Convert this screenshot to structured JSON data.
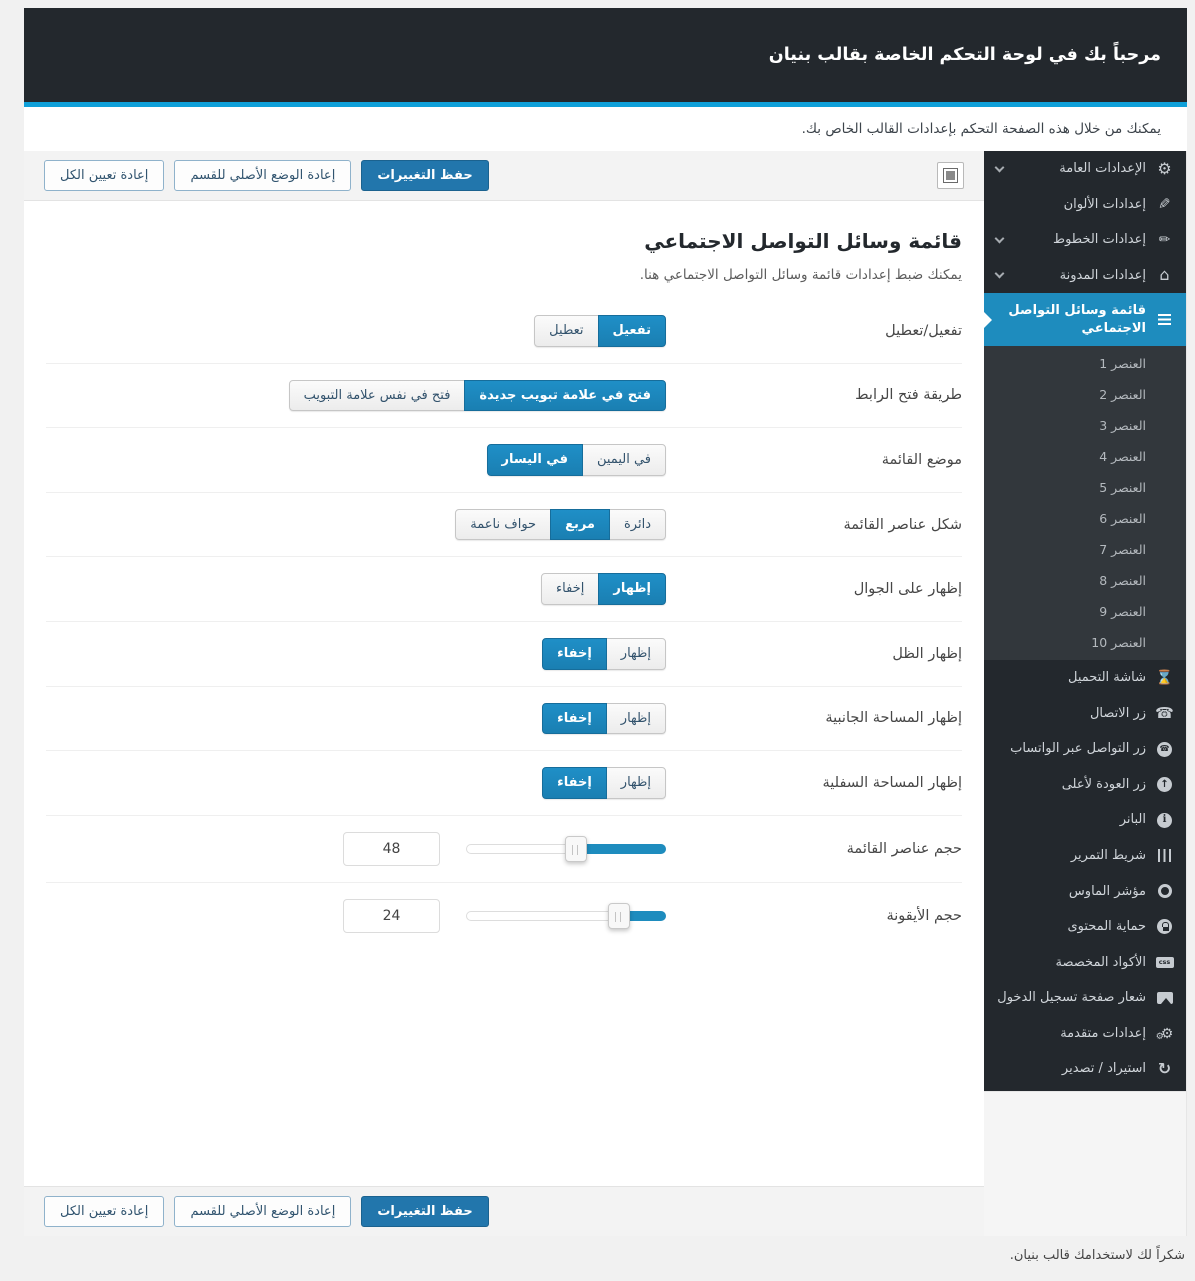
{
  "header": {
    "title": "مرحباً بك في لوحة التحكم الخاصة بقالب بنيان",
    "subtitle": "يمكنك من خلال هذه الصفحة التحكم بإعدادات القالب الخاص بك."
  },
  "toolbar": {
    "save": "حفظ التغييرات",
    "reset_section": "إعادة الوضع الأصلي للقسم",
    "reset_all": "إعادة تعيين الكل",
    "panel_icon": "layout-toggle-icon"
  },
  "sidebar": {
    "css_badge_text": "css",
    "items": [
      {
        "label": "الإعدادات العامة",
        "icon": "gear-icon",
        "expandable": true
      },
      {
        "label": "إعدادات الألوان",
        "icon": "brush-icon",
        "expandable": false
      },
      {
        "label": "إعدادات الخطوط",
        "icon": "pencil-icon",
        "expandable": true
      },
      {
        "label": "إعدادات المدونة",
        "icon": "home-icon",
        "expandable": true
      },
      {
        "label": "قائمة وسائل التواصل الاجتماعي",
        "icon": "list-icon",
        "active": true
      },
      {
        "label": "العنصر 1"
      },
      {
        "label": "العنصر 2"
      },
      {
        "label": "العنصر 3"
      },
      {
        "label": "العنصر 4"
      },
      {
        "label": "العنصر 5"
      },
      {
        "label": "العنصر 6"
      },
      {
        "label": "العنصر 7"
      },
      {
        "label": "العنصر 8"
      },
      {
        "label": "العنصر 9"
      },
      {
        "label": "العنصر 10"
      },
      {
        "label": "شاشة التحميل",
        "icon": "hourglass-icon"
      },
      {
        "label": "زر الاتصال",
        "icon": "phone-icon"
      },
      {
        "label": "زر التواصل عبر الواتساب",
        "icon": "whatsapp-icon"
      },
      {
        "label": "زر العودة لأعلى",
        "icon": "arrow-up-circle-icon"
      },
      {
        "label": "البانر",
        "icon": "info-icon"
      },
      {
        "label": "شريط التمرير",
        "icon": "sliders-icon"
      },
      {
        "label": "مؤشر الماوس",
        "icon": "ring-icon"
      },
      {
        "label": "حماية المحتوى",
        "icon": "lock-icon"
      },
      {
        "label": "الأكواد المخصصة",
        "icon": "css-icon"
      },
      {
        "label": "شعار صفحة تسجيل الدخول",
        "icon": "image-icon"
      },
      {
        "label": "إعدادات متقدمة",
        "icon": "gears-icon"
      },
      {
        "label": "استيراد / تصدير",
        "icon": "sync-icon"
      }
    ]
  },
  "section": {
    "title": "قائمة وسائل التواصل الاجتماعي",
    "description": "يمكنك ضبط إعدادات قائمة وسائل التواصل الاجتماعي هنا.",
    "rows": [
      {
        "label": "تفعيل/تعطيل",
        "options": [
          {
            "label": "تفعيل",
            "active": true
          },
          {
            "label": "تعطيل",
            "active": false
          }
        ]
      },
      {
        "label": "طريقة فتح الرابط",
        "options": [
          {
            "label": "فتح في علامة تبويب جديدة",
            "active": true
          },
          {
            "label": "فتح في نفس علامة التبويب",
            "active": false
          }
        ]
      },
      {
        "label": "موضع القائمة",
        "options": [
          {
            "label": "في اليمين",
            "active": false
          },
          {
            "label": "في اليسار",
            "active": true
          }
        ]
      },
      {
        "label": "شكل عناصر القائمة",
        "options": [
          {
            "label": "دائرة",
            "active": false
          },
          {
            "label": "مربع",
            "active": true
          },
          {
            "label": "حواف ناعمة",
            "active": false
          }
        ]
      },
      {
        "label": "إظهار على الجوال",
        "options": [
          {
            "label": "إظهار",
            "active": true
          },
          {
            "label": "إخفاء",
            "active": false
          }
        ]
      },
      {
        "label": "إظهار الظل",
        "options": [
          {
            "label": "إظهار",
            "active": false
          },
          {
            "label": "إخفاء",
            "active": true
          }
        ]
      },
      {
        "label": "إظهار المساحة الجانبية",
        "options": [
          {
            "label": "إظهار",
            "active": false
          },
          {
            "label": "إخفاء",
            "active": true
          }
        ]
      },
      {
        "label": "إظهار المساحة السفلية",
        "options": [
          {
            "label": "إظهار",
            "active": false
          },
          {
            "label": "إخفاء",
            "active": true
          }
        ]
      },
      {
        "label": "حجم عناصر القائمة",
        "slider": {
          "value": "48",
          "fill_percent": 45
        }
      },
      {
        "label": "حجم الأيقونة",
        "slider": {
          "value": "24",
          "fill_percent": 23
        }
      }
    ]
  },
  "footer": {
    "thanks": "شكراً لك لاستخدامك قالب بنيان."
  },
  "colors": {
    "accent": "#1e8cbe",
    "accent_line": "#0fa0d9",
    "header_bg": "#23282d",
    "submenu_bg": "#32373c",
    "primary_button": "#2276ac"
  }
}
